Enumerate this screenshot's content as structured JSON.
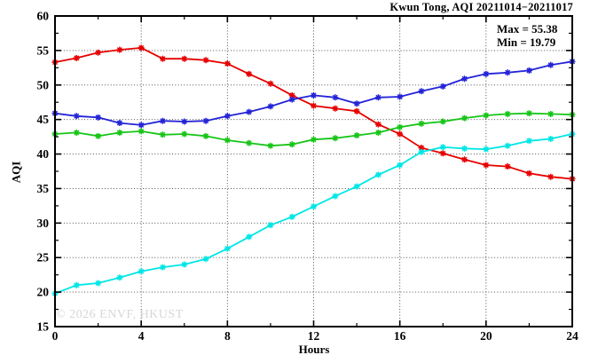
{
  "header": {
    "title": "Kwun Tong, AQI 20211014−20211017"
  },
  "annotation": {
    "max_label": "Max = 55.38",
    "min_label": "Min = 19.79"
  },
  "watermark": "© 2026 ENVF, HKUST",
  "axes": {
    "ylabel": "AQI",
    "xlabel": "Hours"
  },
  "colors": {
    "background": "#ffffff",
    "axis": "#000000",
    "grid": "#3c3c3c",
    "watermark": "#d7d7d7"
  },
  "chart_data": {
    "type": "line",
    "title": "Kwun Tong, AQI 20211014−20211017",
    "xlabel": "Hours",
    "ylabel": "AQI",
    "xlim": [
      0,
      24
    ],
    "ylim": [
      15,
      60
    ],
    "x_major_ticks": [
      0,
      4,
      8,
      12,
      16,
      20,
      24
    ],
    "x_minor_ticks": [
      2,
      6,
      10,
      14,
      18,
      22
    ],
    "y_major_ticks": [
      15,
      20,
      25,
      30,
      35,
      40,
      45,
      50,
      55,
      60
    ],
    "y_minor_ticks": [
      17.5,
      22.5,
      27.5,
      32.5,
      37.5,
      42.5,
      47.5,
      52.5,
      57.5
    ],
    "grid": "dotted-at-major-ticks",
    "legend": "none",
    "marker": "asterisk",
    "annotations": {
      "max": 55.38,
      "min": 19.79
    },
    "x": [
      0,
      1,
      2,
      3,
      4,
      5,
      6,
      7,
      8,
      9,
      10,
      11,
      12,
      13,
      14,
      15,
      16,
      17,
      18,
      19,
      20,
      21,
      22,
      23,
      24
    ],
    "series": [
      {
        "name": "red",
        "color": "#e60000",
        "values": [
          53.3,
          53.9,
          54.7,
          55.1,
          55.38,
          53.8,
          53.8,
          53.6,
          53.1,
          51.6,
          50.2,
          48.5,
          47.0,
          46.6,
          46.2,
          44.3,
          42.9,
          40.9,
          40.1,
          39.2,
          38.4,
          38.2,
          37.2,
          36.7,
          36.4
        ]
      },
      {
        "name": "blue",
        "color": "#2323d8",
        "values": [
          45.9,
          45.5,
          45.3,
          44.5,
          44.2,
          44.8,
          44.7,
          44.8,
          45.5,
          46.1,
          46.9,
          47.9,
          48.5,
          48.2,
          47.3,
          48.2,
          48.3,
          49.1,
          49.8,
          50.9,
          51.6,
          51.8,
          52.1,
          52.9,
          53.4
        ]
      },
      {
        "name": "green",
        "color": "#17c517",
        "values": [
          42.9,
          43.1,
          42.6,
          43.1,
          43.3,
          42.8,
          42.9,
          42.6,
          42.0,
          41.6,
          41.2,
          41.4,
          42.1,
          42.3,
          42.7,
          43.1,
          43.9,
          44.4,
          44.7,
          45.2,
          45.6,
          45.8,
          45.9,
          45.8,
          45.7
        ]
      },
      {
        "name": "cyan",
        "color": "#00e6e6",
        "values": [
          19.79,
          21.0,
          21.3,
          22.1,
          23.0,
          23.6,
          24.0,
          24.8,
          26.3,
          28.0,
          29.7,
          30.9,
          32.4,
          33.9,
          35.3,
          37.0,
          38.4,
          40.3,
          41.0,
          40.8,
          40.7,
          41.2,
          41.9,
          42.2,
          42.9
        ]
      }
    ]
  }
}
